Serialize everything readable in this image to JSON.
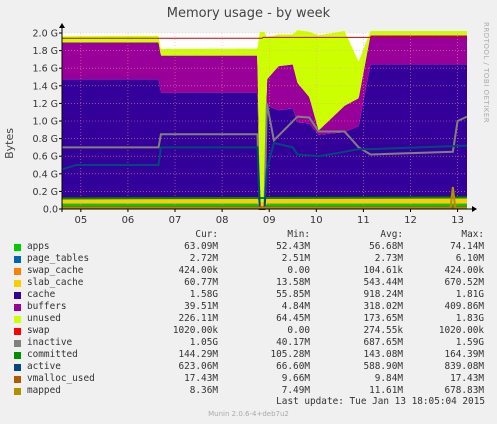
{
  "title": "Memory usage - by week",
  "side_label": "RRDTOOL / TOBI OETIKER",
  "footer": "Munin 2.0.6-4+deb7u2",
  "last_update": "Last update:  Tue Jan 13 18:05:04 2015",
  "chart_data": {
    "type": "area",
    "title": "Memory usage - by week",
    "ylabel": "Bytes",
    "ylim": [
      0,
      2.0
    ],
    "yunit": "G",
    "grid": true,
    "yticks": [
      "0.0",
      "0.2 G",
      "0.4 G",
      "0.6 G",
      "0.8 G",
      "1.0 G",
      "1.2 G",
      "1.4 G",
      "1.6 G",
      "1.8 G",
      "2.0 G"
    ],
    "xticks": [
      {
        "label": "05",
        "x": 0.4
      },
      {
        "label": "06",
        "x": 1.4
      },
      {
        "label": "07",
        "x": 2.4
      },
      {
        "label": "08",
        "x": 3.4
      },
      {
        "label": "09",
        "x": 4.4
      },
      {
        "label": "10",
        "x": 5.4
      },
      {
        "label": "11",
        "x": 6.4
      },
      {
        "label": "12",
        "x": 7.4
      },
      {
        "label": "13",
        "x": 8.4
      }
    ],
    "xlim": [
      0,
      8.6
    ],
    "total_points": [
      [
        0,
        1.94
      ],
      [
        4.25,
        1.94
      ],
      [
        4.27,
        1.95
      ],
      [
        8.6,
        1.95
      ]
    ],
    "stack_series": [
      {
        "name": "apps",
        "color": "#00cc00",
        "points": [
          [
            0,
            0.06
          ],
          [
            4.15,
            0.06
          ],
          [
            4.2,
            0.02
          ],
          [
            4.3,
            0.02
          ],
          [
            4.35,
            0.06
          ],
          [
            8.6,
            0.06
          ]
        ]
      },
      {
        "name": "page_tables",
        "color": "#0066b3",
        "points": [
          [
            0,
            0.003
          ],
          [
            8.6,
            0.003
          ]
        ]
      },
      {
        "name": "swap_cache",
        "color": "#ff8000",
        "points": [
          [
            0,
            0.0
          ],
          [
            8.6,
            0.0
          ]
        ]
      },
      {
        "name": "slab_cache",
        "color": "#ffcc00",
        "points": [
          [
            0,
            0.06
          ],
          [
            8.6,
            0.06
          ]
        ]
      },
      {
        "name": "cache",
        "color": "#330099",
        "points": [
          [
            0,
            1.35
          ],
          [
            2.05,
            1.35
          ],
          [
            2.1,
            1.2
          ],
          [
            4.15,
            1.2
          ],
          [
            4.2,
            0.0
          ],
          [
            4.3,
            0.0
          ],
          [
            4.35,
            1.05
          ],
          [
            4.6,
            1.0
          ],
          [
            4.9,
            1.02
          ],
          [
            5.0,
            0.86
          ],
          [
            5.25,
            0.85
          ],
          [
            5.45,
            0.72
          ],
          [
            6.0,
            0.75
          ],
          [
            6.3,
            0.82
          ],
          [
            6.55,
            1.52
          ],
          [
            8.6,
            1.52
          ]
        ]
      },
      {
        "name": "buffers",
        "color": "#990099",
        "points": [
          [
            0,
            0.42
          ],
          [
            4.15,
            0.42
          ],
          [
            4.2,
            0.0
          ],
          [
            4.3,
            0.0
          ],
          [
            4.35,
            0.3
          ],
          [
            4.6,
            0.5
          ],
          [
            4.9,
            0.5
          ],
          [
            5.0,
            0.45
          ],
          [
            5.25,
            0.3
          ],
          [
            5.45,
            0.05
          ],
          [
            6.0,
            0.3
          ],
          [
            6.55,
            0.33
          ],
          [
            8.6,
            0.33
          ]
        ]
      },
      {
        "name": "unused",
        "color": "#ccff00",
        "points": [
          [
            0,
            0.07
          ],
          [
            4.15,
            0.08
          ],
          [
            4.2,
            1.93
          ],
          [
            4.3,
            1.93
          ],
          [
            4.35,
            0.48
          ],
          [
            4.6,
            0.36
          ],
          [
            4.9,
            0.34
          ],
          [
            5.0,
            0.6
          ],
          [
            5.25,
            0.74
          ],
          [
            5.45,
            1.08
          ],
          [
            6.0,
            0.85
          ],
          [
            6.55,
            0.05
          ],
          [
            8.6,
            0.05
          ]
        ]
      }
    ],
    "line_series": [
      {
        "name": "inactive",
        "color": "#808080",
        "points": [
          [
            0,
            0.7
          ],
          [
            2.05,
            0.7
          ],
          [
            2.1,
            0.85
          ],
          [
            4.15,
            0.85
          ],
          [
            4.2,
            0.0
          ],
          [
            4.3,
            0.0
          ],
          [
            4.35,
            1.2
          ],
          [
            4.5,
            0.78
          ],
          [
            5.0,
            1.05
          ],
          [
            5.25,
            1.04
          ],
          [
            5.45,
            0.88
          ],
          [
            6.0,
            0.88
          ],
          [
            6.3,
            0.7
          ],
          [
            6.55,
            0.62
          ],
          [
            8.3,
            0.65
          ],
          [
            8.4,
            1.0
          ],
          [
            8.6,
            1.05
          ]
        ]
      },
      {
        "name": "committed",
        "color": "#008f00",
        "points": [
          [
            0,
            0.12
          ],
          [
            8.6,
            0.13
          ]
        ]
      },
      {
        "name": "active",
        "color": "#00487d",
        "points": [
          [
            0,
            0.45
          ],
          [
            0.3,
            0.5
          ],
          [
            2.05,
            0.5
          ],
          [
            2.1,
            0.7
          ],
          [
            4.15,
            0.7
          ],
          [
            4.2,
            0.0
          ],
          [
            4.3,
            0.0
          ],
          [
            4.35,
            0.45
          ],
          [
            4.5,
            0.75
          ],
          [
            4.9,
            0.7
          ],
          [
            5.0,
            0.62
          ],
          [
            5.45,
            0.6
          ],
          [
            6.0,
            0.65
          ],
          [
            6.3,
            0.68
          ],
          [
            6.55,
            0.68
          ],
          [
            8.6,
            0.72
          ]
        ]
      },
      {
        "name": "vmalloc_used",
        "color": "#b35a00",
        "points": [
          [
            0,
            0.02
          ],
          [
            8.6,
            0.02
          ]
        ]
      },
      {
        "name": "mapped",
        "color": "#b38f00",
        "points": [
          [
            0,
            0.01
          ],
          [
            8.25,
            0.01
          ],
          [
            8.3,
            0.25
          ],
          [
            8.35,
            0.01
          ],
          [
            8.6,
            0.01
          ]
        ]
      }
    ]
  },
  "legend": {
    "headers": {
      "cur": "Cur:",
      "min": "Min:",
      "avg": "Avg:",
      "max": "Max:"
    },
    "rows": [
      {
        "name": "apps",
        "color": "#00cc00",
        "cur": "63.09M",
        "min": "52.43M",
        "avg": "56.68M",
        "max": "74.14M"
      },
      {
        "name": "page_tables",
        "color": "#0066b3",
        "cur": "2.72M",
        "min": "2.51M",
        "avg": "2.73M",
        "max": "6.10M"
      },
      {
        "name": "swap_cache",
        "color": "#ff8000",
        "cur": "424.00k",
        "min": "0.00",
        "avg": "104.61k",
        "max": "424.00k"
      },
      {
        "name": "slab_cache",
        "color": "#ffcc00",
        "cur": "60.77M",
        "min": "13.58M",
        "avg": "543.44M",
        "max": "670.52M"
      },
      {
        "name": "cache",
        "color": "#330099",
        "cur": "1.58G",
        "min": "55.85M",
        "avg": "918.24M",
        "max": "1.81G"
      },
      {
        "name": "buffers",
        "color": "#990099",
        "cur": "39.51M",
        "min": "4.84M",
        "avg": "318.02M",
        "max": "409.86M"
      },
      {
        "name": "unused",
        "color": "#ccff00",
        "cur": "226.11M",
        "min": "64.45M",
        "avg": "173.65M",
        "max": "1.83G"
      },
      {
        "name": "swap",
        "color": "#ff0000",
        "cur": "1020.00k",
        "min": "0.00",
        "avg": "274.55k",
        "max": "1020.00k"
      },
      {
        "name": "inactive",
        "color": "#808080",
        "cur": "1.05G",
        "min": "40.17M",
        "avg": "687.65M",
        "max": "1.59G"
      },
      {
        "name": "committed",
        "color": "#008f00",
        "cur": "144.29M",
        "min": "105.28M",
        "avg": "143.08M",
        "max": "164.39M"
      },
      {
        "name": "active",
        "color": "#00487d",
        "cur": "623.06M",
        "min": "66.60M",
        "avg": "588.90M",
        "max": "839.08M"
      },
      {
        "name": "vmalloc_used",
        "color": "#b35a00",
        "cur": "17.43M",
        "min": "9.66M",
        "avg": "9.84M",
        "max": "17.43M"
      },
      {
        "name": "mapped",
        "color": "#b38f00",
        "cur": "8.36M",
        "min": "7.49M",
        "avg": "11.61M",
        "max": "678.83M"
      }
    ]
  }
}
